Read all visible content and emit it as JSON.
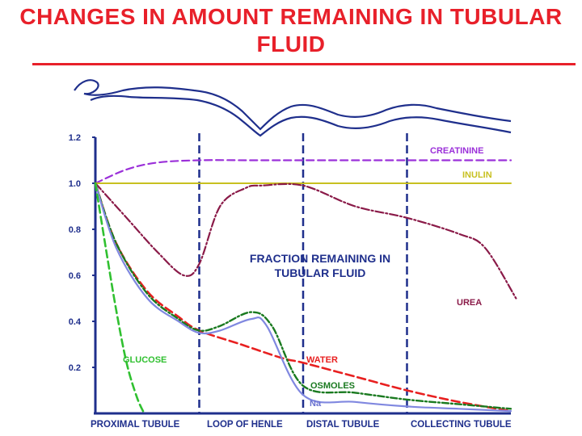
{
  "title": "CHANGES IN AMOUNT REMAINING IN TUBULAR FLUID",
  "chart_data": {
    "type": "line",
    "annotation": "FRACTION REMAINING IN TUBULAR FLUID",
    "ylim": [
      0,
      1.2
    ],
    "yticks": [
      "1.2",
      "1.0",
      "0.8",
      "0.6",
      "0.4",
      "0.2"
    ],
    "ytick_values": [
      1.2,
      1.0,
      0.8,
      0.6,
      0.4,
      0.2
    ],
    "segments": [
      "PROXIMAL TUBULE",
      "LOOP OF HENLE",
      "DISTAL TUBULE",
      "COLLECTING TUBULE"
    ],
    "xlim": [
      0,
      4
    ],
    "boundaries": [
      1,
      2,
      3
    ],
    "grid": false,
    "series": [
      {
        "name": "CREATININE",
        "color": "#9b30d9",
        "dash": "9,5",
        "x": [
          0,
          0.3,
          0.6,
          1.0,
          1.5,
          2.0,
          3.0,
          4.0
        ],
        "y": [
          1.0,
          1.06,
          1.09,
          1.1,
          1.1,
          1.1,
          1.1,
          1.1
        ]
      },
      {
        "name": "INULIN",
        "color": "#c8c020",
        "dash": "",
        "x": [
          0,
          4.0
        ],
        "y": [
          1.0,
          1.0
        ]
      },
      {
        "name": "UREA",
        "color": "#8a1a48",
        "dash": "10,3,2,3",
        "x": [
          0,
          0.3,
          0.6,
          0.85,
          1.0,
          1.2,
          1.45,
          1.6,
          2.0,
          2.5,
          3.0,
          3.5,
          3.75,
          4.05
        ],
        "y": [
          1.0,
          0.85,
          0.7,
          0.6,
          0.65,
          0.9,
          0.98,
          0.99,
          0.99,
          0.9,
          0.85,
          0.78,
          0.72,
          0.5
        ]
      },
      {
        "name": "WATER",
        "color": "#e82020",
        "dash": "10,5",
        "x": [
          0,
          0.2,
          0.5,
          0.8,
          1.0,
          1.4,
          1.8,
          2.0,
          2.5,
          3.0,
          3.5,
          4.0
        ],
        "y": [
          1.0,
          0.74,
          0.53,
          0.42,
          0.36,
          0.3,
          0.24,
          0.22,
          0.16,
          0.1,
          0.05,
          0.01
        ]
      },
      {
        "name": "OSMOLES",
        "color": "#1a7a20",
        "dash": "8,3,2,3",
        "x": [
          0,
          0.2,
          0.5,
          0.8,
          1.0,
          1.2,
          1.5,
          1.7,
          2.0,
          2.5,
          3.0,
          3.5,
          4.0
        ],
        "y": [
          1.0,
          0.74,
          0.52,
          0.41,
          0.36,
          0.38,
          0.44,
          0.38,
          0.12,
          0.09,
          0.06,
          0.04,
          0.02
        ]
      },
      {
        "name": "Na",
        "color": "#8088e0",
        "dash": "",
        "x": [
          0,
          0.2,
          0.5,
          0.8,
          1.0,
          1.2,
          1.5,
          1.65,
          2.0,
          2.5,
          3.0,
          3.5,
          4.0
        ],
        "y": [
          1.0,
          0.72,
          0.5,
          0.4,
          0.35,
          0.36,
          0.41,
          0.38,
          0.08,
          0.05,
          0.03,
          0.02,
          0.01
        ]
      },
      {
        "name": "GLUCOSE",
        "color": "#30c030",
        "dash": "9,5",
        "x": [
          0,
          0.1,
          0.2,
          0.3,
          0.4,
          0.47
        ],
        "y": [
          1.0,
          0.72,
          0.45,
          0.22,
          0.07,
          0.0
        ]
      }
    ]
  }
}
